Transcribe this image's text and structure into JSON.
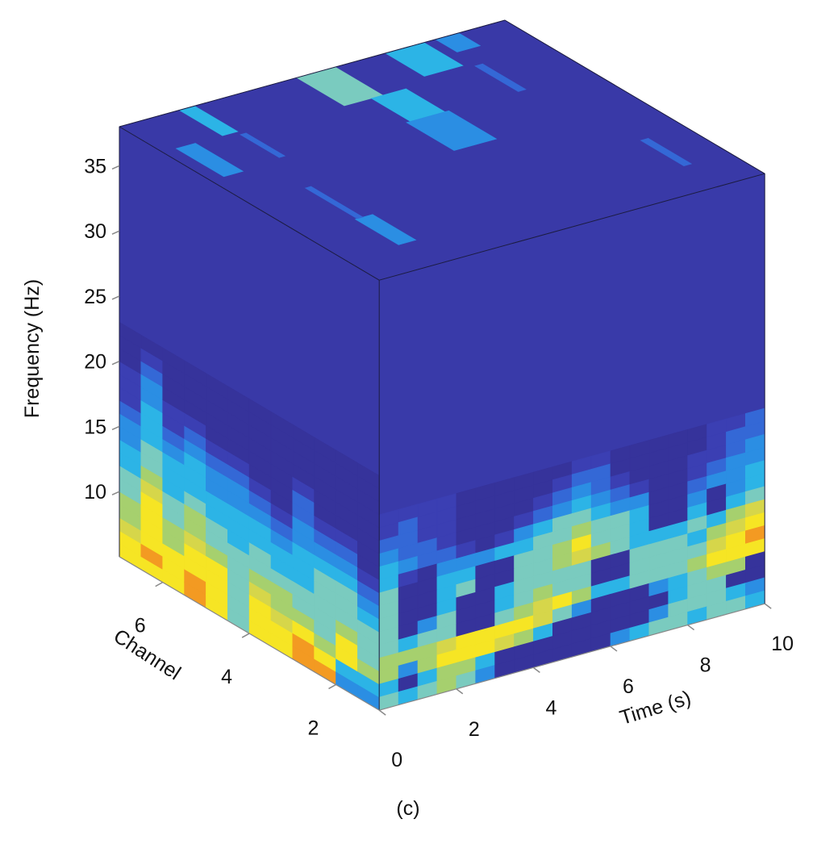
{
  "chart_data": {
    "type": "heatmap",
    "subtype": "3d-cube-volume-slices",
    "caption": "(c)",
    "xlabel": "Time (s)",
    "ylabel": "Channel",
    "zlabel": "Frequency (Hz)",
    "xlim": [
      0,
      10
    ],
    "ylim": [
      1,
      7
    ],
    "zlim": [
      5,
      38
    ],
    "xticks": [
      "0",
      "2",
      "4",
      "6",
      "8",
      "10"
    ],
    "xtick_values": [
      0,
      2,
      4,
      6,
      8,
      10
    ],
    "yticks": [
      "6",
      "4",
      "2"
    ],
    "ytick_values": [
      6,
      4,
      2
    ],
    "zticks": [
      "35",
      "30",
      "25",
      "20",
      "15",
      "10"
    ],
    "ztick_values": [
      35,
      30,
      25,
      20,
      15,
      10
    ],
    "colormap": [
      "#36339b",
      "#3b3fb3",
      "#3468d6",
      "#2b8ee3",
      "#2cb4e6",
      "#7acbbf",
      "#a6d06e",
      "#d6d64a",
      "#f6e524",
      "#f39a22"
    ],
    "value_scale": [
      0,
      9
    ],
    "front_face": {
      "channel": 1,
      "time_step": 0.5,
      "freq_rows_from": 20,
      "freq_rows_to": 5,
      "background_value": 0.6,
      "rows": [
        [
          1,
          1,
          1,
          1,
          0,
          0,
          0,
          0,
          0,
          0,
          1,
          1,
          0,
          0,
          0,
          0,
          0,
          1,
          1,
          2
        ],
        [
          1,
          2,
          1,
          1,
          0,
          0,
          0,
          0,
          0,
          1,
          2,
          2,
          0,
          0,
          0,
          0,
          0,
          1,
          2,
          2
        ],
        [
          2,
          2,
          1,
          1,
          0,
          0,
          0,
          0,
          1,
          2,
          3,
          2,
          1,
          0,
          0,
          0,
          1,
          1,
          2,
          3
        ],
        [
          3,
          2,
          2,
          1,
          0,
          0,
          0,
          1,
          2,
          3,
          4,
          3,
          2,
          1,
          0,
          0,
          1,
          2,
          3,
          3
        ],
        [
          4,
          3,
          2,
          2,
          1,
          0,
          1,
          3,
          4,
          5,
          5,
          4,
          3,
          3,
          0,
          0,
          2,
          3,
          3,
          4
        ],
        [
          4,
          1,
          0,
          3,
          3,
          3,
          4,
          4,
          5,
          5,
          6,
          5,
          5,
          4,
          0,
          0,
          3,
          0,
          3,
          4
        ],
        [
          5,
          0,
          0,
          4,
          4,
          0,
          0,
          5,
          5,
          6,
          8,
          5,
          5,
          4,
          0,
          0,
          4,
          0,
          4,
          5
        ],
        [
          5,
          0,
          0,
          4,
          5,
          0,
          0,
          5,
          5,
          6,
          7,
          6,
          5,
          4,
          4,
          4,
          5,
          4,
          6,
          7
        ],
        [
          5,
          0,
          0,
          4,
          0,
          0,
          4,
          5,
          5,
          5,
          5,
          0,
          0,
          5,
          5,
          5,
          4,
          6,
          7,
          8
        ],
        [
          5,
          0,
          3,
          5,
          0,
          0,
          4,
          5,
          6,
          5,
          5,
          0,
          0,
          5,
          5,
          5,
          5,
          7,
          8,
          9
        ],
        [
          5,
          4,
          5,
          5,
          0,
          0,
          5,
          6,
          7,
          8,
          6,
          4,
          4,
          5,
          5,
          5,
          6,
          8,
          8,
          8
        ],
        [
          6,
          6,
          6,
          7,
          8,
          8,
          8,
          8,
          7,
          5,
          3,
          0,
          0,
          0,
          3,
          4,
          5,
          6,
          6,
          0
        ],
        [
          6,
          3,
          6,
          8,
          8,
          8,
          7,
          6,
          4,
          0,
          0,
          0,
          0,
          0,
          0,
          4,
          5,
          5,
          0,
          0
        ],
        [
          4,
          0,
          4,
          6,
          6,
          4,
          0,
          0,
          0,
          0,
          0,
          0,
          0,
          0,
          3,
          5,
          5,
          5,
          4,
          3
        ],
        [
          5,
          4,
          5,
          6,
          5,
          3,
          0,
          0,
          0,
          0,
          0,
          0,
          3,
          4,
          5,
          5,
          4,
          5,
          5,
          4
        ]
      ]
    },
    "left_face": {
      "time": 0,
      "channel_from": 7,
      "channel_to": 1,
      "freq_from": 5,
      "freq_step": 1,
      "background_value": 0.5,
      "columns": [
        [
          8,
          8,
          7,
          6,
          6,
          5,
          5,
          4,
          4,
          3,
          3,
          2,
          1,
          1,
          1,
          0,
          0,
          0
        ],
        [
          8,
          9,
          8,
          8,
          8,
          8,
          7,
          6,
          5,
          5,
          4,
          4,
          4,
          3,
          3,
          2,
          1,
          0
        ],
        [
          8,
          8,
          8,
          6,
          6,
          5,
          5,
          4,
          4,
          4,
          3,
          2,
          1,
          1,
          0,
          0,
          0,
          0
        ],
        [
          9,
          9,
          8,
          8,
          7,
          6,
          6,
          5,
          4,
          4,
          4,
          3,
          2,
          1,
          0,
          0,
          0,
          0
        ],
        [
          8,
          8,
          8,
          8,
          6,
          5,
          5,
          4,
          4,
          3,
          3,
          2,
          1,
          0,
          0,
          0,
          0,
          0
        ],
        [
          5,
          5,
          5,
          5,
          5,
          5,
          4,
          4,
          4,
          3,
          3,
          2,
          1,
          0,
          0,
          0,
          0,
          0
        ],
        [
          8,
          8,
          8,
          7,
          6,
          5,
          5,
          4,
          4,
          3,
          2,
          1,
          0,
          0,
          0,
          0,
          0,
          0
        ],
        [
          8,
          8,
          7,
          6,
          6,
          5,
          4,
          4,
          3,
          2,
          1,
          0,
          0,
          0,
          0,
          0,
          0,
          0
        ],
        [
          9,
          9,
          8,
          6,
          5,
          5,
          4,
          4,
          4,
          3,
          3,
          2,
          2,
          1,
          0,
          0,
          0,
          0
        ],
        [
          9,
          8,
          6,
          5,
          5,
          5,
          5,
          5,
          4,
          3,
          2,
          1,
          0,
          0,
          0,
          0,
          0,
          0
        ],
        [
          3,
          4,
          8,
          8,
          6,
          5,
          5,
          5,
          4,
          3,
          2,
          1,
          0,
          0,
          0,
          0,
          0,
          0
        ],
        [
          3,
          4,
          6,
          5,
          5,
          5,
          4,
          3,
          2,
          1,
          0,
          0,
          0,
          0,
          0,
          0,
          0,
          0
        ]
      ]
    },
    "top_face": {
      "freq": 38,
      "background_value": 0.5,
      "streaks": [
        {
          "t": [
            1.55,
            1.95
          ],
          "channel": [
            6.0,
            7.0
          ],
          "value": 4
        },
        {
          "t": [
            0.35,
            0.85
          ],
          "channel": [
            4.9,
            6.0
          ],
          "value": 3
        },
        {
          "t": [
            1.9,
            2.05
          ],
          "channel": [
            5.0,
            5.9
          ],
          "value": 2
        },
        {
          "t": [
            1.4,
            1.85
          ],
          "channel": [
            1.8,
            2.8
          ],
          "value": 3
        },
        {
          "t": [
            1.45,
            1.6
          ],
          "channel": [
            2.8,
            4.0
          ],
          "value": 2
        },
        {
          "t": [
            4.6,
            5.6
          ],
          "channel": [
            5.9,
            7.0
          ],
          "value": 5
        },
        {
          "t": [
            5.3,
            6.2
          ],
          "channel": [
            5.0,
            5.9
          ],
          "value": 4
        },
        {
          "t": [
            5.2,
            6.3
          ],
          "channel": [
            3.9,
            5.0
          ],
          "value": 3
        },
        {
          "t": [
            6.9,
            7.9
          ],
          "channel": [
            6.1,
            7.0
          ],
          "value": 4
        },
        {
          "t": [
            8.2,
            8.8
          ],
          "channel": [
            6.5,
            7.0
          ],
          "value": 3
        },
        {
          "t": [
            8.1,
            8.3
          ],
          "channel": [
            5.0,
            6.0
          ],
          "value": 2
        },
        {
          "t": [
            8.8,
            9.0
          ],
          "channel": [
            1.8,
            2.8
          ],
          "value": 2
        }
      ]
    }
  }
}
